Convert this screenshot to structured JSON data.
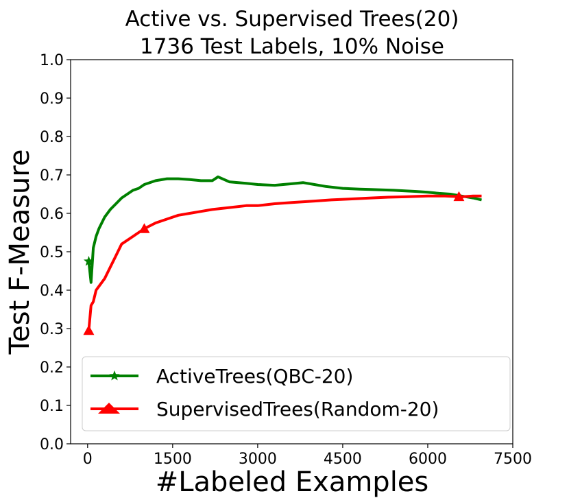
{
  "chart_data": {
    "type": "line",
    "title": [
      "Active vs. Supervised Trees(20)",
      "1736 Test Labels, 10% Noise"
    ],
    "xlabel": "#Labeled Examples",
    "ylabel": "Test F-Measure",
    "xlim": [
      -300,
      7500
    ],
    "ylim": [
      0.0,
      1.0
    ],
    "xticks": [
      0,
      1500,
      3000,
      4500,
      6000,
      7500
    ],
    "xtick_labels": [
      "0",
      "1500",
      "3000",
      "4500",
      "6000",
      "7500"
    ],
    "yticks": [
      0.0,
      0.1,
      0.2,
      0.3,
      0.4,
      0.5,
      0.6,
      0.7,
      0.8,
      0.9,
      1.0
    ],
    "ytick_labels": [
      "0.0",
      "0.1",
      "0.2",
      "0.3",
      "0.4",
      "0.5",
      "0.6",
      "0.7",
      "0.8",
      "0.9",
      "1.0"
    ],
    "grid": false,
    "legend_position": "bottom-left",
    "series": [
      {
        "name": "ActiveTrees(QBC-20)",
        "color": "#008000",
        "marker": "star",
        "x": [
          20,
          60,
          100,
          150,
          200,
          300,
          400,
          500,
          600,
          700,
          800,
          900,
          1000,
          1200,
          1400,
          1600,
          1800,
          2000,
          2200,
          2300,
          2500,
          2800,
          3000,
          3300,
          3600,
          3800,
          4000,
          4200,
          4500,
          4800,
          5000,
          5400,
          5800,
          6000,
          6200,
          6400,
          6600,
          6800,
          6950
        ],
        "y": [
          0.475,
          0.42,
          0.51,
          0.54,
          0.56,
          0.59,
          0.61,
          0.625,
          0.64,
          0.65,
          0.66,
          0.665,
          0.675,
          0.685,
          0.69,
          0.69,
          0.688,
          0.685,
          0.685,
          0.695,
          0.682,
          0.678,
          0.675,
          0.673,
          0.677,
          0.68,
          0.675,
          0.67,
          0.665,
          0.663,
          0.662,
          0.66,
          0.657,
          0.655,
          0.652,
          0.65,
          0.645,
          0.64,
          0.635
        ],
        "marker_x": [
          20
        ]
      },
      {
        "name": "SupervisedTrees(Random-20)",
        "color": "#ff0000",
        "marker": "triangle",
        "x": [
          20,
          60,
          100,
          150,
          200,
          300,
          400,
          500,
          600,
          800,
          1000,
          1200,
          1400,
          1600,
          1800,
          2000,
          2200,
          2500,
          2800,
          3000,
          3300,
          3600,
          4000,
          4300,
          4600,
          5000,
          5300,
          5600,
          6000,
          6300,
          6600,
          6800,
          6950
        ],
        "y": [
          0.295,
          0.36,
          0.37,
          0.4,
          0.41,
          0.43,
          0.46,
          0.49,
          0.52,
          0.54,
          0.56,
          0.575,
          0.585,
          0.595,
          0.6,
          0.605,
          0.61,
          0.615,
          0.62,
          0.62,
          0.625,
          0.628,
          0.632,
          0.635,
          0.637,
          0.64,
          0.642,
          0.643,
          0.645,
          0.645,
          0.643,
          0.645,
          0.645
        ],
        "marker_x": [
          20,
          1000,
          6550
        ]
      }
    ]
  }
}
